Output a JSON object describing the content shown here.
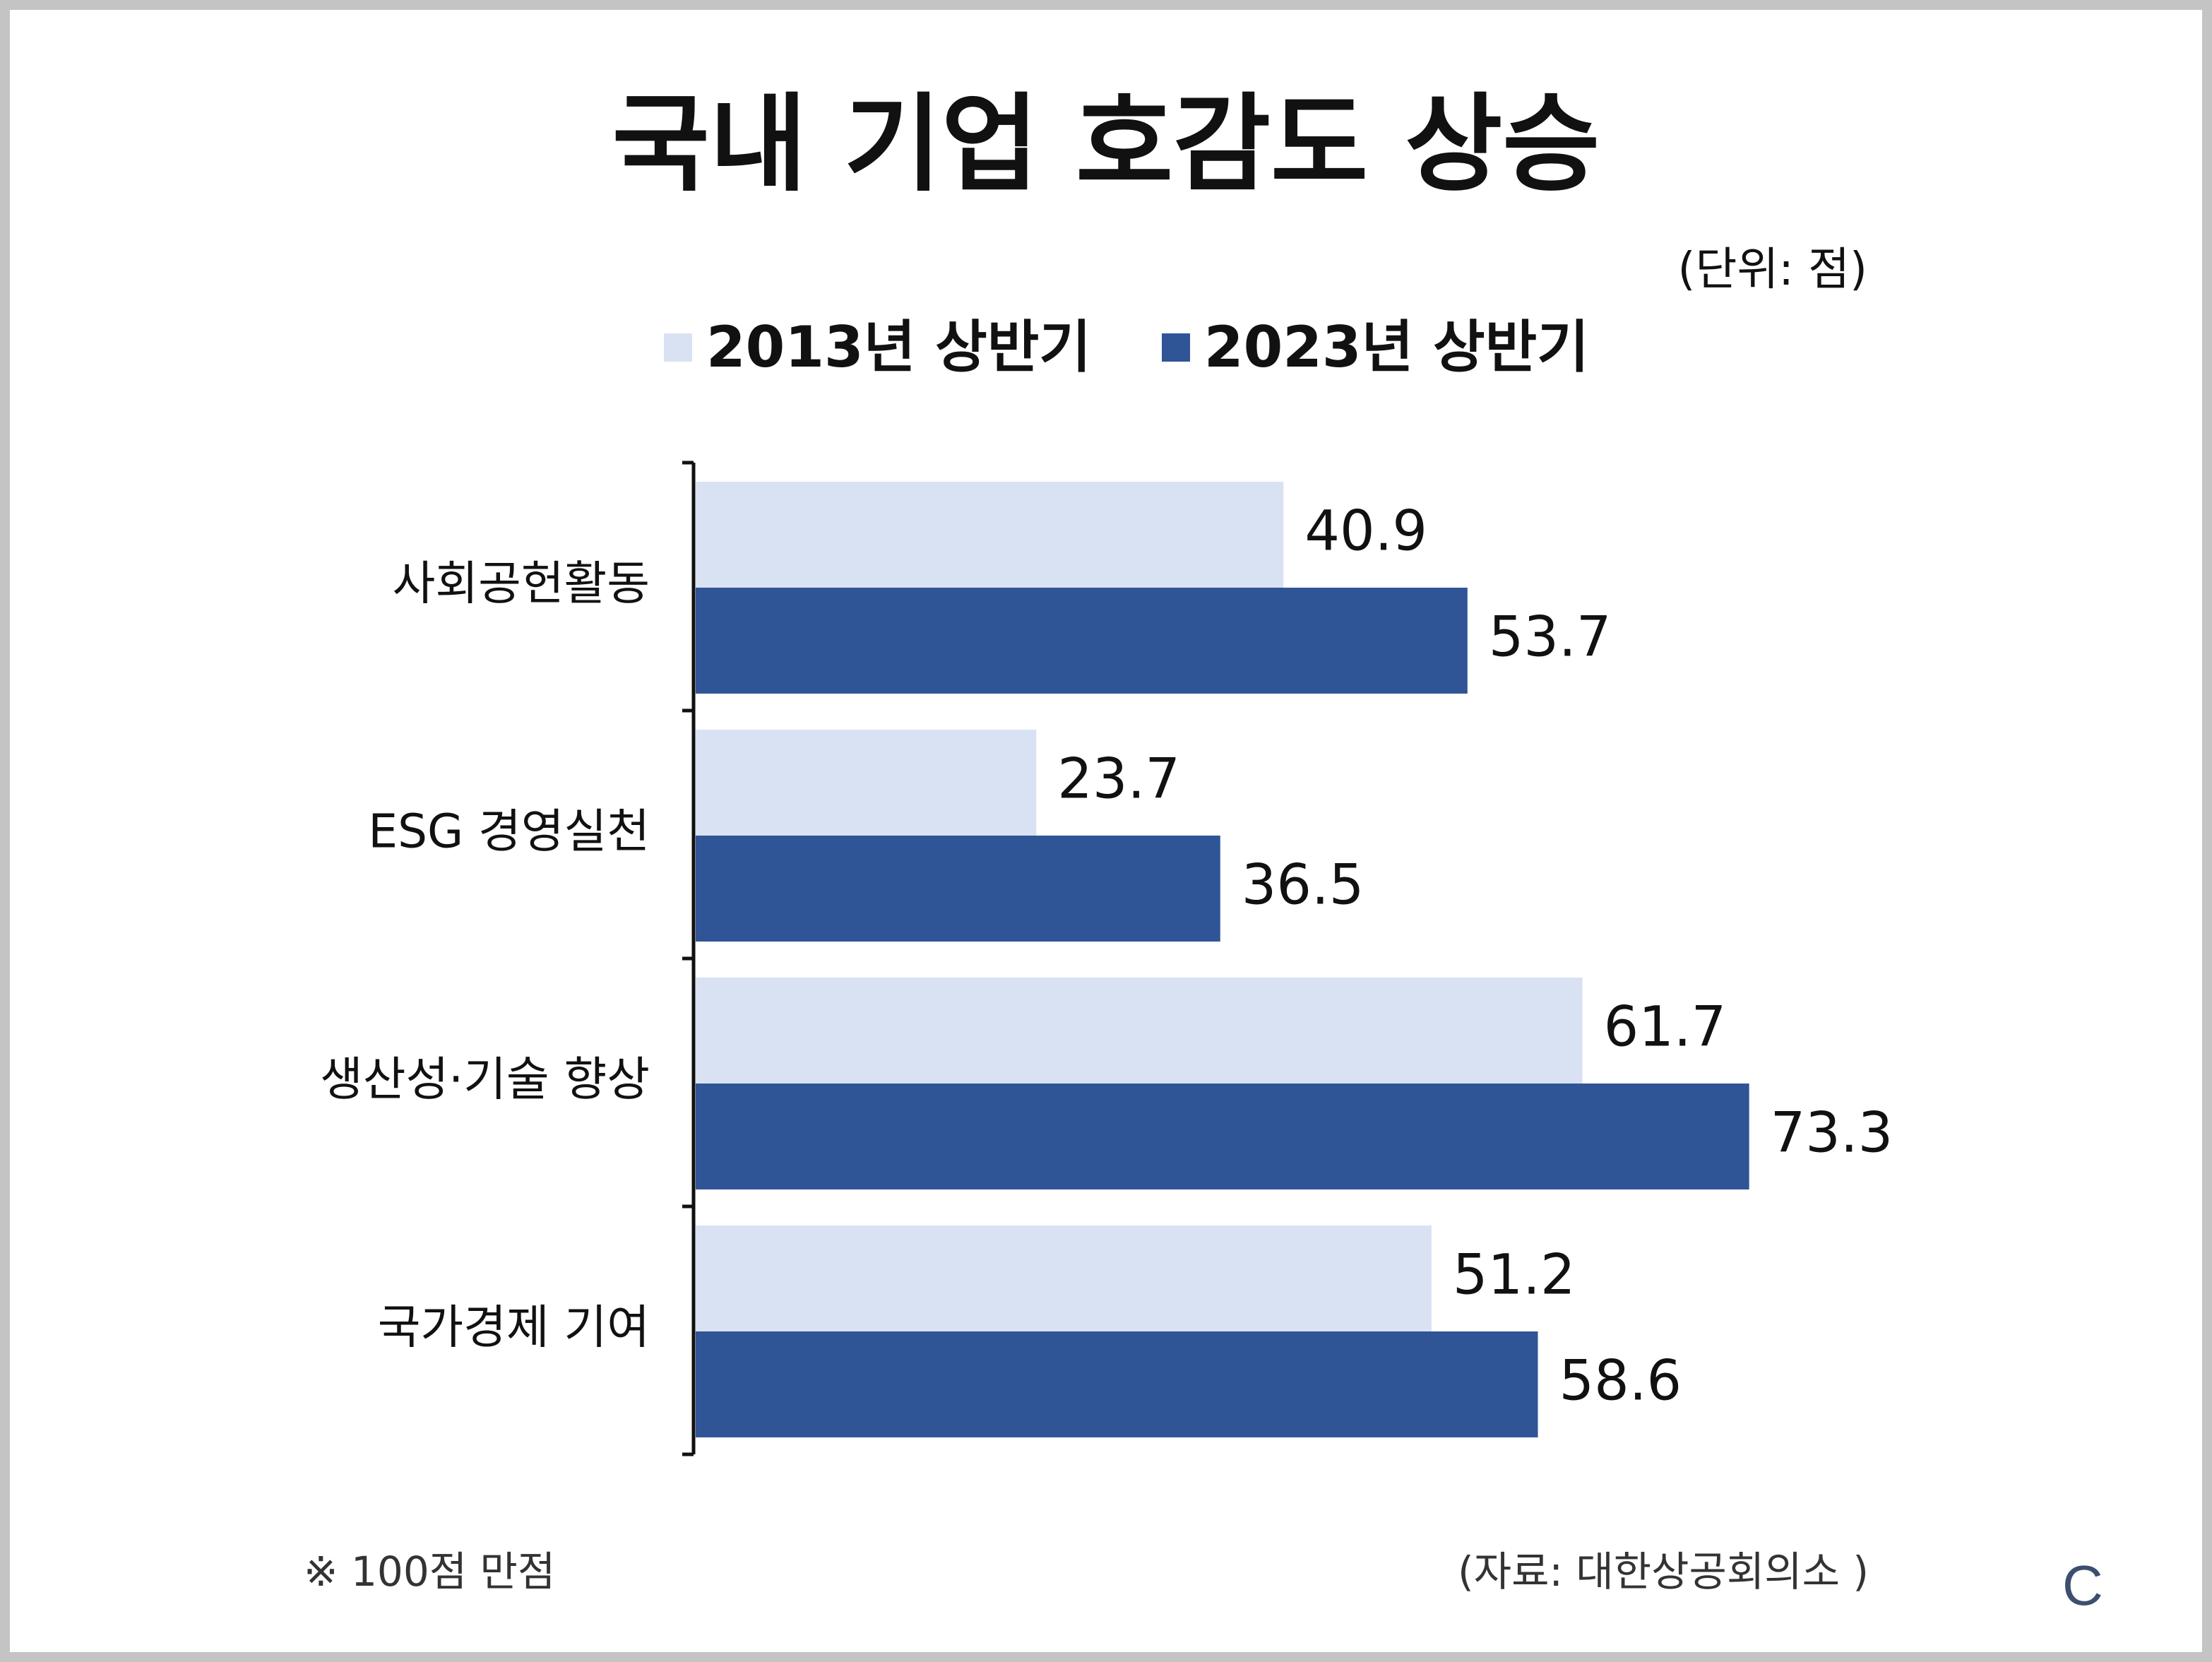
{
  "colors": {
    "series_2013": "#d9e2f3",
    "series_2023": "#2f5597",
    "axis": "#111111",
    "frame": "#c4c4c4",
    "logo": "#3c4f6e"
  },
  "unit_label": "(단위: 점)",
  "footnote": "※ 100점 만점",
  "source": "(자료: 대한상공회의소 )",
  "logo_text": "C",
  "chart_data": {
    "type": "bar",
    "orientation": "horizontal",
    "title": "국내 기업 호감도 상승",
    "categories": [
      "사회공헌활동",
      "ESG 경영실천",
      "생산성·기술 향상",
      "국가경제 기여"
    ],
    "series": [
      {
        "name": "2013년 상반기",
        "values": [
          40.9,
          23.7,
          61.7,
          51.2
        ]
      },
      {
        "name": "2023년 상반기",
        "values": [
          53.7,
          36.5,
          73.3,
          58.6
        ]
      }
    ],
    "value_labels": [
      [
        "40.9",
        "23.7",
        "61.7",
        "51.2"
      ],
      [
        "53.7",
        "36.5",
        "73.3",
        "58.6"
      ]
    ],
    "xlim": [
      0,
      100
    ],
    "grid": false,
    "legend_position": "top"
  }
}
